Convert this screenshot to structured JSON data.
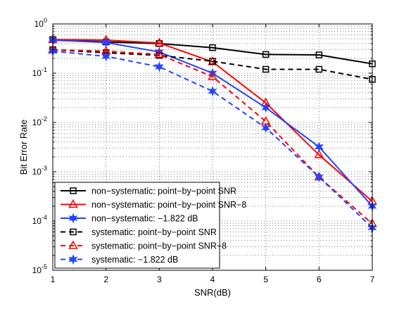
{
  "chart_data": {
    "type": "line",
    "xlabel": "SNR(dB)",
    "ylabel": "Bit Error Rate",
    "xlim": [
      1,
      7
    ],
    "ylim": [
      1e-05,
      1
    ],
    "yscale": "log",
    "grid": true,
    "grid_style": "dotted",
    "legend_placement": "bottom-left",
    "x": [
      1,
      2,
      3,
      4,
      5,
      6,
      7
    ],
    "xticks": [
      "1",
      "2",
      "3",
      "4",
      "5",
      "6",
      "7"
    ],
    "yticks": [
      {
        "base": "10",
        "exp": "0"
      },
      {
        "base": "10",
        "exp": "-1"
      },
      {
        "base": "10",
        "exp": "-2"
      },
      {
        "base": "10",
        "exp": "-3"
      },
      {
        "base": "10",
        "exp": "-4"
      },
      {
        "base": "10",
        "exp": "-5"
      }
    ],
    "series": [
      {
        "name": "non−systematic: point−by−point SNR",
        "color": "#000000",
        "dash": "solid",
        "marker": "square",
        "values": [
          0.48,
          0.43,
          0.4,
          0.33,
          0.24,
          0.235,
          0.155
        ]
      },
      {
        "name": "non−systematic: point−by−point SNR−8",
        "color": "#ff0000",
        "dash": "solid",
        "marker": "triangle",
        "values": [
          0.48,
          0.47,
          0.41,
          0.17,
          0.025,
          0.0022,
          0.00025
        ]
      },
      {
        "name": "non−systematic: −1.822 dB",
        "color": "#2244ff",
        "dash": "solid",
        "marker": "star",
        "values": [
          0.47,
          0.42,
          0.27,
          0.1,
          0.02,
          0.0032,
          0.0002
        ]
      },
      {
        "name": "systematic: point−by−point SNR",
        "color": "#000000",
        "dash": "dashed",
        "marker": "square",
        "values": [
          0.3,
          0.26,
          0.23,
          0.175,
          0.12,
          0.12,
          0.075
        ]
      },
      {
        "name": "systematic: point−by−point SNR−8",
        "color": "#ff0000",
        "dash": "dashed",
        "marker": "triangle",
        "values": [
          0.3,
          0.28,
          0.24,
          0.085,
          0.0105,
          0.00078,
          8.8e-05
        ]
      },
      {
        "name": "systematic: −1.822 dB",
        "color": "#2244ff",
        "dash": "dashed",
        "marker": "star",
        "values": [
          0.28,
          0.22,
          0.135,
          0.043,
          0.0078,
          0.00078,
          7.3e-05
        ]
      }
    ]
  }
}
